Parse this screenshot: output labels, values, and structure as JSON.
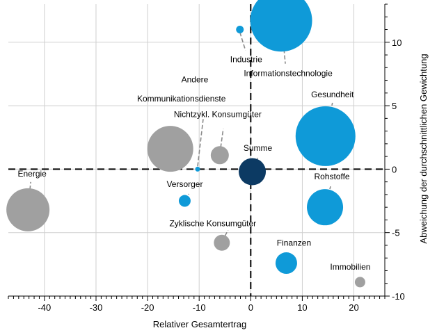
{
  "chart_data": {
    "type": "scatter",
    "subtype": "bubble",
    "xlabel": "Relativer Gesamtertrag",
    "ylabel": "Abweichung der durchschnittlichen Gewichtung",
    "xlim": [
      -47,
      26
    ],
    "ylim": [
      -10,
      13
    ],
    "xticks": [
      -40,
      -30,
      -20,
      -10,
      0,
      10,
      20
    ],
    "yticks": [
      -10,
      -5,
      0,
      5,
      10
    ],
    "yaxis_position": "right",
    "grid": true,
    "reference_lines": {
      "x": 0,
      "y": 0,
      "style": "dashed"
    },
    "colors": {
      "grey": "#a0a0a0",
      "blue": "#0f9ad8",
      "dark": "#0c3a63",
      "grid": "#cfcfcf",
      "leader": "#8a8a8a"
    },
    "points": [
      {
        "label": "Energie",
        "x": -43.2,
        "y": -3.2,
        "size": 62,
        "color": "grey"
      },
      {
        "label": "Kommunikationsdienste",
        "x": -15.6,
        "y": 1.6,
        "size": 66,
        "color": "grey"
      },
      {
        "label": "Andere",
        "x": -10.3,
        "y": 0.0,
        "size": 7,
        "color": "blue"
      },
      {
        "label": "Nichtzykl. Konsumgüter",
        "x": -6.0,
        "y": 1.1,
        "size": 26,
        "color": "grey"
      },
      {
        "label": "Versorger",
        "x": -12.8,
        "y": -2.5,
        "size": 17,
        "color": "blue"
      },
      {
        "label": "Zyklische Konsumgüter",
        "x": -5.6,
        "y": -5.8,
        "size": 23,
        "color": "grey"
      },
      {
        "label": "Industrie",
        "x": -2.1,
        "y": 11.0,
        "size": 11,
        "color": "blue"
      },
      {
        "label": "Informationstechnologie",
        "x": 5.9,
        "y": 11.7,
        "size": 89,
        "color": "blue"
      },
      {
        "label": "Summe",
        "x": 0.3,
        "y": -0.2,
        "size": 39,
        "color": "dark"
      },
      {
        "label": "Gesundheit",
        "x": 14.5,
        "y": 2.6,
        "size": 86,
        "color": "blue"
      },
      {
        "label": "Rohstoffe",
        "x": 14.4,
        "y": -3.0,
        "size": 52,
        "color": "blue"
      },
      {
        "label": "Finanzen",
        "x": 6.9,
        "y": -7.4,
        "size": 31,
        "color": "blue"
      },
      {
        "label": "Immobilien",
        "x": 21.2,
        "y": -8.9,
        "size": 15,
        "color": "grey"
      }
    ]
  }
}
